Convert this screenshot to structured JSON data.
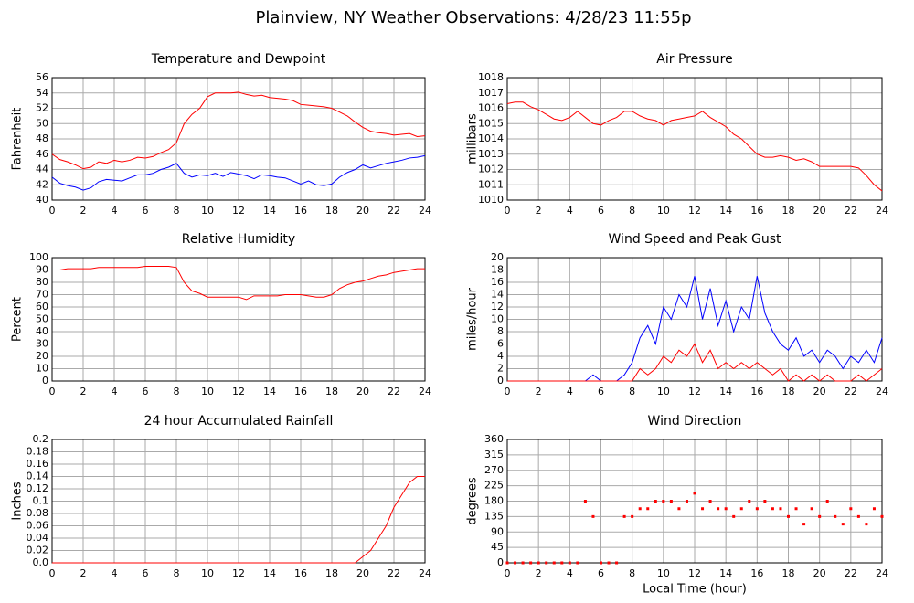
{
  "title": "Plainview, NY Weather Observations: 4/28/23 11:55p",
  "chart_data": [
    {
      "type": "line",
      "title": "Temperature and Dewpoint",
      "ylabel": "Fahrenheit",
      "x": [
        0,
        0.5,
        1,
        1.5,
        2,
        2.5,
        3,
        3.5,
        4,
        4.5,
        5,
        5.5,
        6,
        6.5,
        7,
        7.5,
        8,
        8.5,
        9,
        9.5,
        10,
        10.5,
        11,
        11.5,
        12,
        12.5,
        13,
        13.5,
        14,
        14.5,
        15,
        15.5,
        16,
        16.5,
        17,
        17.5,
        18,
        18.5,
        19,
        19.5,
        20,
        20.5,
        21,
        21.5,
        22,
        22.5,
        23,
        23.5,
        24
      ],
      "series": [
        {
          "color": "#ff0000",
          "values": [
            46,
            45.3,
            45,
            44.6,
            44.1,
            44.3,
            45,
            44.8,
            45.2,
            45,
            45.2,
            45.6,
            45.5,
            45.7,
            46.2,
            46.6,
            47.5,
            50,
            51.2,
            52,
            53.5,
            54,
            54,
            54,
            54.1,
            53.8,
            53.6,
            53.7,
            53.4,
            53.3,
            53.2,
            53,
            52.5,
            52.4,
            52.3,
            52.2,
            52,
            51.5,
            51,
            50.2,
            49.5,
            49,
            48.8,
            48.7,
            48.5,
            48.6,
            48.7,
            48.3,
            48.4
          ]
        },
        {
          "color": "#0000ff",
          "values": [
            43,
            42.2,
            41.9,
            41.7,
            41.3,
            41.6,
            42.4,
            42.7,
            42.6,
            42.5,
            42.9,
            43.3,
            43.3,
            43.5,
            44,
            44.3,
            44.8,
            43.5,
            43,
            43.3,
            43.2,
            43.5,
            43.1,
            43.6,
            43.4,
            43.2,
            42.8,
            43.3,
            43.2,
            43,
            42.9,
            42.5,
            42.1,
            42.5,
            42,
            41.9,
            42.1,
            43,
            43.6,
            44,
            44.6,
            44.2,
            44.5,
            44.8,
            45,
            45.2,
            45.5,
            45.6,
            45.8
          ]
        }
      ],
      "xlim": [
        0,
        24
      ],
      "xticks": [
        0,
        2,
        4,
        6,
        8,
        10,
        12,
        14,
        16,
        18,
        20,
        22,
        24
      ],
      "ylim": [
        40,
        56
      ],
      "yticks": [
        40,
        42,
        44,
        46,
        48,
        50,
        52,
        54,
        56
      ],
      "grid": true
    },
    {
      "type": "line",
      "title": "Air Pressure",
      "ylabel": "millibars",
      "x": [
        0,
        0.5,
        1,
        1.5,
        2,
        2.5,
        3,
        3.5,
        4,
        4.5,
        5,
        5.5,
        6,
        6.5,
        7,
        7.5,
        8,
        8.5,
        9,
        9.5,
        10,
        10.5,
        11,
        11.5,
        12,
        12.5,
        13,
        13.5,
        14,
        14.5,
        15,
        15.5,
        16,
        16.5,
        17,
        17.5,
        18,
        18.5,
        19,
        19.5,
        20,
        20.5,
        21,
        21.5,
        22,
        22.5,
        23,
        23.5,
        24
      ],
      "series": [
        {
          "color": "#ff0000",
          "values": [
            1016.3,
            1016.4,
            1016.4,
            1016.1,
            1015.9,
            1015.6,
            1015.3,
            1015.2,
            1015.4,
            1015.8,
            1015.4,
            1015,
            1014.9,
            1015.2,
            1015.4,
            1015.8,
            1015.8,
            1015.5,
            1015.3,
            1015.2,
            1014.9,
            1015.2,
            1015.3,
            1015.4,
            1015.5,
            1015.8,
            1015.4,
            1015.1,
            1014.8,
            1014.3,
            1014,
            1013.5,
            1013,
            1012.8,
            1012.8,
            1012.9,
            1012.8,
            1012.6,
            1012.7,
            1012.5,
            1012.2,
            1012.2,
            1012.2,
            1012.2,
            1012.2,
            1012.1,
            1011.6,
            1011,
            1010.6
          ]
        }
      ],
      "xlim": [
        0,
        24
      ],
      "xticks": [
        0,
        2,
        4,
        6,
        8,
        10,
        12,
        14,
        16,
        18,
        20,
        22,
        24
      ],
      "ylim": [
        1010,
        1018
      ],
      "yticks": [
        1010,
        1011,
        1012,
        1013,
        1014,
        1015,
        1016,
        1017,
        1018
      ],
      "grid": true
    },
    {
      "type": "line",
      "title": "Relative Humidity",
      "ylabel": "Percent",
      "x": [
        0,
        0.5,
        1,
        1.5,
        2,
        2.5,
        3,
        3.5,
        4,
        4.5,
        5,
        5.5,
        6,
        6.5,
        7,
        7.5,
        8,
        8.5,
        9,
        9.5,
        10,
        10.5,
        11,
        11.5,
        12,
        12.5,
        13,
        13.5,
        14,
        14.5,
        15,
        15.5,
        16,
        16.5,
        17,
        17.5,
        18,
        18.5,
        19,
        19.5,
        20,
        20.5,
        21,
        21.5,
        22,
        22.5,
        23,
        23.5,
        24
      ],
      "series": [
        {
          "color": "#ff0000",
          "values": [
            90,
            90,
            91,
            91,
            91,
            91,
            92,
            92,
            92,
            92,
            92,
            92,
            93,
            93,
            93,
            93,
            92,
            80,
            73,
            71,
            68,
            68,
            68,
            68,
            68,
            66,
            69,
            69,
            69,
            69,
            70,
            70,
            70,
            69,
            68,
            68,
            70,
            75,
            78,
            80,
            81,
            83,
            85,
            86,
            88,
            89,
            90,
            91,
            91
          ]
        }
      ],
      "xlim": [
        0,
        24
      ],
      "xticks": [
        0,
        2,
        4,
        6,
        8,
        10,
        12,
        14,
        16,
        18,
        20,
        22,
        24
      ],
      "ylim": [
        0,
        100
      ],
      "yticks": [
        0,
        10,
        20,
        30,
        40,
        50,
        60,
        70,
        80,
        90,
        100
      ],
      "grid": true
    },
    {
      "type": "line",
      "title": "Wind Speed and Peak Gust",
      "ylabel": "miles/hour",
      "x": [
        0,
        0.5,
        1,
        1.5,
        2,
        2.5,
        3,
        3.5,
        4,
        4.5,
        5,
        5.5,
        6,
        6.5,
        7,
        7.5,
        8,
        8.5,
        9,
        9.5,
        10,
        10.5,
        11,
        11.5,
        12,
        12.5,
        13,
        13.5,
        14,
        14.5,
        15,
        15.5,
        16,
        16.5,
        17,
        17.5,
        18,
        18.5,
        19,
        19.5,
        20,
        20.5,
        21,
        21.5,
        22,
        22.5,
        23,
        23.5,
        24
      ],
      "series": [
        {
          "color": "#0000ff",
          "values": [
            0,
            0,
            0,
            0,
            0,
            0,
            0,
            0,
            0,
            0,
            0,
            1,
            0,
            0,
            0,
            1,
            3,
            7,
            9,
            6,
            12,
            10,
            14,
            12,
            17,
            10,
            15,
            9,
            13,
            8,
            12,
            10,
            17,
            11,
            8,
            6,
            5,
            7,
            4,
            5,
            3,
            5,
            4,
            2,
            4,
            3,
            5,
            3,
            7
          ]
        },
        {
          "color": "#ff0000",
          "values": [
            0,
            0,
            0,
            0,
            0,
            0,
            0,
            0,
            0,
            0,
            0,
            0,
            0,
            0,
            0,
            0,
            0,
            2,
            1,
            2,
            4,
            3,
            5,
            4,
            6,
            3,
            5,
            2,
            3,
            2,
            3,
            2,
            3,
            2,
            1,
            2,
            0,
            1,
            0,
            1,
            0,
            1,
            0,
            0,
            0,
            1,
            0,
            1,
            2
          ]
        }
      ],
      "xlim": [
        0,
        24
      ],
      "xticks": [
        0,
        2,
        4,
        6,
        8,
        10,
        12,
        14,
        16,
        18,
        20,
        22,
        24
      ],
      "ylim": [
        0,
        20
      ],
      "yticks": [
        0,
        2,
        4,
        6,
        8,
        10,
        12,
        14,
        16,
        18,
        20
      ],
      "grid": true
    },
    {
      "type": "line",
      "title": "24 hour Accumulated Rainfall",
      "ylabel": "Inches",
      "x": [
        0,
        0.5,
        1,
        1.5,
        2,
        2.5,
        3,
        3.5,
        4,
        4.5,
        5,
        5.5,
        6,
        6.5,
        7,
        7.5,
        8,
        8.5,
        9,
        9.5,
        10,
        10.5,
        11,
        11.5,
        12,
        12.5,
        13,
        13.5,
        14,
        14.5,
        15,
        15.5,
        16,
        16.5,
        17,
        17.5,
        18,
        18.5,
        19,
        19.5,
        20,
        20.5,
        21,
        21.5,
        22,
        22.5,
        23,
        23.5,
        24
      ],
      "series": [
        {
          "color": "#ff0000",
          "values": [
            0,
            0,
            0,
            0,
            0,
            0,
            0,
            0,
            0,
            0,
            0,
            0,
            0,
            0,
            0,
            0,
            0,
            0,
            0,
            0,
            0,
            0,
            0,
            0,
            0,
            0,
            0,
            0,
            0,
            0,
            0,
            0,
            0,
            0,
            0,
            0,
            0,
            0,
            0,
            0,
            0.01,
            0.02,
            0.04,
            0.06,
            0.09,
            0.11,
            0.13,
            0.14,
            0.14
          ]
        }
      ],
      "xlim": [
        0,
        24
      ],
      "xticks": [
        0,
        2,
        4,
        6,
        8,
        10,
        12,
        14,
        16,
        18,
        20,
        22,
        24
      ],
      "ylim": [
        0,
        0.2
      ],
      "yticks": [
        {
          "value": 0,
          "label": "0.0"
        },
        0.02,
        0.04,
        0.06,
        0.08,
        0.1,
        0.12,
        0.14,
        0.16,
        0.18,
        0.2
      ],
      "grid": true
    },
    {
      "type": "scatter",
      "title": "Wind Direction",
      "ylabel": "degrees",
      "xlabel": "Local Time (hour)",
      "x": [
        0,
        0.5,
        1,
        1.5,
        2,
        2.5,
        3,
        3.5,
        4,
        4.5,
        5,
        5.5,
        6,
        6.5,
        7,
        7.5,
        8,
        8.5,
        9,
        9.5,
        10,
        10.5,
        11,
        11.5,
        12,
        12.5,
        13,
        13.5,
        14,
        14.5,
        15,
        15.5,
        16,
        16.5,
        17,
        17.5,
        18,
        18.5,
        19,
        19.5,
        20,
        20.5,
        21,
        21.5,
        22,
        22.5,
        23,
        23.5,
        24
      ],
      "series": [
        {
          "color": "#ff0000",
          "values": [
            0,
            0,
            0,
            0,
            0,
            0,
            0,
            0,
            0,
            0,
            180,
            135,
            0,
            0,
            0,
            135,
            135,
            158,
            158,
            180,
            180,
            180,
            158,
            180,
            203,
            158,
            180,
            158,
            158,
            135,
            158,
            180,
            158,
            180,
            158,
            158,
            135,
            158,
            113,
            158,
            135,
            180,
            135,
            113,
            158,
            135,
            113,
            158,
            135
          ]
        }
      ],
      "xlim": [
        0,
        24
      ],
      "xticks": [
        0,
        2,
        4,
        6,
        8,
        10,
        12,
        14,
        16,
        18,
        20,
        22,
        24
      ],
      "ylim": [
        0,
        360
      ],
      "yticks": [
        0,
        45,
        90,
        135,
        180,
        225,
        270,
        315,
        360
      ],
      "grid": true
    }
  ]
}
